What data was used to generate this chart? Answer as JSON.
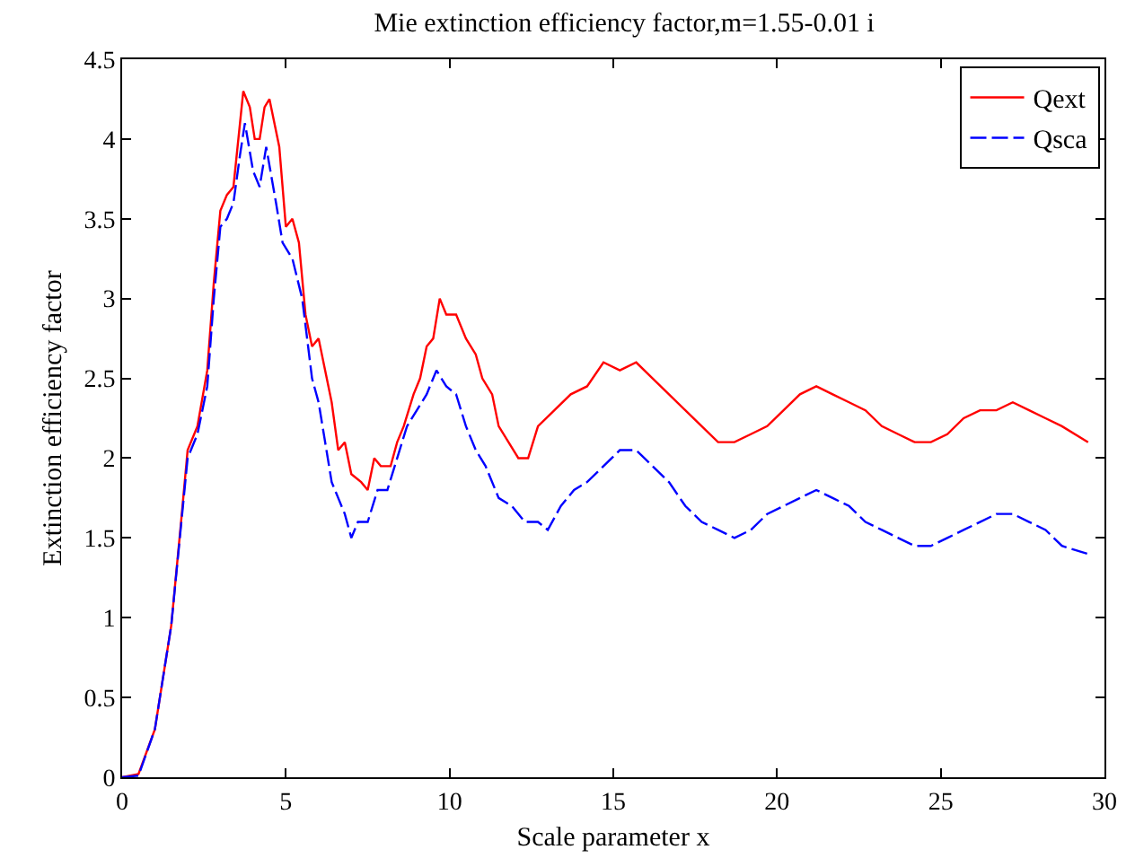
{
  "chart_data": {
    "type": "line",
    "title": "Mie extinction efficiency factor,m=1.55-0.01 i",
    "xlabel": "Scale parameter x",
    "ylabel": "Extinction efficiency factor",
    "xlim": [
      0,
      30
    ],
    "xticks": [
      0,
      5,
      10,
      15,
      20,
      25,
      30
    ],
    "ylim": [
      0,
      4.5
    ],
    "yticks": [
      0,
      0.5,
      1,
      1.5,
      2,
      2.5,
      3,
      3.5,
      4,
      4.5
    ],
    "legend": "top right",
    "series": [
      {
        "name": "Qext",
        "color": "#ff0000",
        "line_style": "solid",
        "x": [
          0,
          0.5,
          1,
          1.5,
          1.8,
          2,
          2.3,
          2.6,
          2.8,
          3,
          3.2,
          3.4,
          3.6,
          3.7,
          3.9,
          4.05,
          4.2,
          4.35,
          4.5,
          4.8,
          5.0,
          5.2,
          5.4,
          5.6,
          5.8,
          6.0,
          6.2,
          6.4,
          6.6,
          6.8,
          7.0,
          7.3,
          7.5,
          7.7,
          7.9,
          8.2,
          8.4,
          8.6,
          8.9,
          9.1,
          9.3,
          9.5,
          9.7,
          9.9,
          10.2,
          10.5,
          10.8,
          11.0,
          11.3,
          11.5,
          11.8,
          12.1,
          12.4,
          12.7,
          13.2,
          13.7,
          14.2,
          14.7,
          15.2,
          15.7,
          16.2,
          16.7,
          17.2,
          17.7,
          18.2,
          18.7,
          19.2,
          19.7,
          20.2,
          20.7,
          21.2,
          21.7,
          22.2,
          22.7,
          23.2,
          23.7,
          24.2,
          24.7,
          25.2,
          25.7,
          26.2,
          26.7,
          27.2,
          27.7,
          28.2,
          28.7,
          29.5
        ],
        "values": [
          0,
          0.02,
          0.3,
          0.95,
          1.6,
          2.05,
          2.2,
          2.55,
          3.1,
          3.55,
          3.65,
          3.7,
          4.1,
          4.3,
          4.2,
          4.0,
          4.0,
          4.2,
          4.25,
          3.95,
          3.45,
          3.5,
          3.35,
          2.9,
          2.7,
          2.75,
          2.55,
          2.35,
          2.05,
          2.1,
          1.9,
          1.85,
          1.8,
          2.0,
          1.95,
          1.95,
          2.1,
          2.2,
          2.4,
          2.5,
          2.7,
          2.75,
          3.0,
          2.9,
          2.9,
          2.75,
          2.65,
          2.5,
          2.4,
          2.2,
          2.1,
          2.0,
          2.0,
          2.2,
          2.3,
          2.4,
          2.45,
          2.6,
          2.55,
          2.6,
          2.5,
          2.4,
          2.3,
          2.2,
          2.1,
          2.1,
          2.15,
          2.2,
          2.3,
          2.4,
          2.45,
          2.4,
          2.35,
          2.3,
          2.2,
          2.15,
          2.1,
          2.1,
          2.15,
          2.25,
          2.3,
          2.3,
          2.35,
          2.3,
          2.25,
          2.2,
          2.1
        ]
      },
      {
        "name": "Qsca",
        "color": "#0000ff",
        "line_style": "dashed",
        "x": [
          0,
          0.5,
          1,
          1.5,
          2,
          2.3,
          2.6,
          2.8,
          3,
          3.2,
          3.4,
          3.6,
          3.75,
          4.0,
          4.2,
          4.4,
          4.7,
          4.9,
          5.2,
          5.5,
          5.8,
          6.0,
          6.2,
          6.4,
          6.6,
          6.8,
          7.0,
          7.2,
          7.5,
          7.8,
          8.1,
          8.4,
          8.7,
          9.0,
          9.3,
          9.6,
          9.9,
          10.2,
          10.5,
          10.8,
          11.1,
          11.5,
          11.9,
          12.3,
          12.7,
          13.0,
          13.4,
          13.8,
          14.2,
          14.7,
          15.2,
          15.7,
          16.2,
          16.7,
          17.2,
          17.7,
          18.2,
          18.7,
          19.2,
          19.7,
          20.2,
          20.7,
          21.2,
          21.7,
          22.2,
          22.7,
          23.2,
          23.7,
          24.2,
          24.7,
          25.2,
          25.7,
          26.2,
          26.7,
          27.2,
          27.7,
          28.2,
          28.7,
          29.5
        ],
        "values": [
          0,
          0.01,
          0.3,
          0.95,
          2.0,
          2.15,
          2.45,
          3.0,
          3.45,
          3.5,
          3.6,
          3.9,
          4.1,
          3.8,
          3.7,
          3.95,
          3.6,
          3.35,
          3.25,
          3.0,
          2.5,
          2.35,
          2.1,
          1.85,
          1.75,
          1.65,
          1.5,
          1.6,
          1.6,
          1.8,
          1.8,
          2.0,
          2.2,
          2.3,
          2.4,
          2.55,
          2.45,
          2.4,
          2.2,
          2.05,
          1.95,
          1.75,
          1.7,
          1.6,
          1.6,
          1.55,
          1.7,
          1.8,
          1.85,
          1.95,
          2.05,
          2.05,
          1.95,
          1.85,
          1.7,
          1.6,
          1.55,
          1.5,
          1.55,
          1.65,
          1.7,
          1.75,
          1.8,
          1.75,
          1.7,
          1.6,
          1.55,
          1.5,
          1.45,
          1.45,
          1.5,
          1.55,
          1.6,
          1.65,
          1.65,
          1.6,
          1.55,
          1.45,
          1.4
        ]
      }
    ]
  }
}
